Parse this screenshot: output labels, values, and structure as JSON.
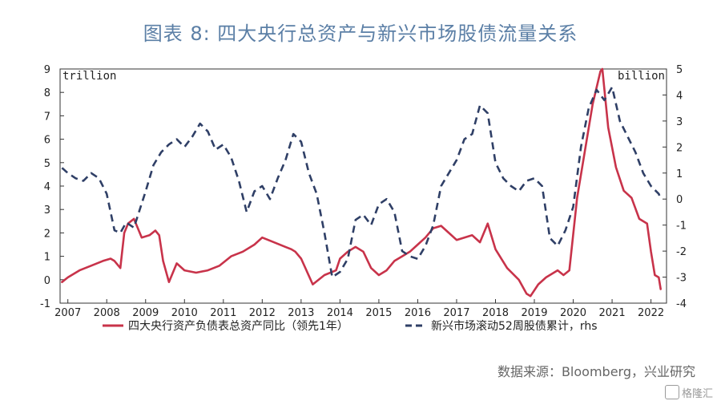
{
  "title": "图表 8:     四大央行总资产与新兴市场股债流量关系",
  "source": "数据来源：Bloomberg，兴业研究",
  "watermark": "格隆汇",
  "chart_data": {
    "type": "line",
    "left_unit": "trillion",
    "right_unit": "billion",
    "x_ticks": [
      "2007",
      "2008",
      "2009",
      "2010",
      "2011",
      "2012",
      "2013",
      "2014",
      "2015",
      "2016",
      "2017",
      "2018",
      "2019",
      "2020",
      "2021",
      "2022"
    ],
    "xlim": [
      2006.8,
      2022.4
    ],
    "ylim_left": [
      -1,
      9
    ],
    "ylim_right": [
      -4,
      5
    ],
    "y_ticks_left": [
      -1,
      0,
      1,
      2,
      3,
      4,
      5,
      6,
      7,
      8,
      9
    ],
    "y_ticks_right": [
      -4,
      -3,
      -2,
      -1,
      0,
      1,
      2,
      3,
      4,
      5
    ],
    "legend_position": "bottom",
    "series": [
      {
        "name": "四大央行资产负债表总资产同比（领先1年）",
        "axis": "left",
        "color": "#c8334a",
        "style": "solid",
        "x": [
          2006.85,
          2007.0,
          2007.3,
          2007.6,
          2007.9,
          2008.1,
          2008.2,
          2008.35,
          2008.45,
          2008.55,
          2008.7,
          2008.9,
          2009.1,
          2009.25,
          2009.35,
          2009.45,
          2009.6,
          2009.8,
          2010.0,
          2010.3,
          2010.6,
          2010.9,
          2011.2,
          2011.5,
          2011.8,
          2012.0,
          2012.3,
          2012.6,
          2012.75,
          2012.85,
          2013.0,
          2013.3,
          2013.6,
          2013.9,
          2014.0,
          2014.2,
          2014.4,
          2014.6,
          2014.8,
          2015.0,
          2015.2,
          2015.4,
          2015.6,
          2015.8,
          2016.0,
          2016.2,
          2016.4,
          2016.6,
          2016.8,
          2017.0,
          2017.2,
          2017.4,
          2017.6,
          2017.8,
          2018.0,
          2018.3,
          2018.6,
          2018.8,
          2018.9,
          2019.1,
          2019.3,
          2019.5,
          2019.6,
          2019.75,
          2019.9,
          2020.1,
          2020.3,
          2020.5,
          2020.7,
          2020.75,
          2020.9,
          2021.1,
          2021.3,
          2021.5,
          2021.7,
          2021.9,
          2022.0,
          2022.1,
          2022.2,
          2022.25
        ],
        "values": [
          -0.1,
          0.1,
          0.4,
          0.6,
          0.8,
          0.9,
          0.8,
          0.5,
          2.0,
          2.4,
          2.6,
          1.8,
          1.9,
          2.1,
          1.9,
          0.8,
          -0.1,
          0.7,
          0.4,
          0.3,
          0.4,
          0.6,
          1.0,
          1.2,
          1.5,
          1.8,
          1.6,
          1.4,
          1.3,
          1.2,
          0.9,
          -0.2,
          0.2,
          0.4,
          0.9,
          1.2,
          1.4,
          1.2,
          0.5,
          0.2,
          0.4,
          0.8,
          1.0,
          1.2,
          1.5,
          1.8,
          2.2,
          2.3,
          2.0,
          1.7,
          1.8,
          1.9,
          1.6,
          2.4,
          1.3,
          0.5,
          0.0,
          -0.6,
          -0.7,
          -0.2,
          0.1,
          0.3,
          0.4,
          0.2,
          0.4,
          3.5,
          5.5,
          7.5,
          8.9,
          9.0,
          6.5,
          4.8,
          3.8,
          3.5,
          2.6,
          2.4,
          1.2,
          0.2,
          0.1,
          -0.4
        ]
      },
      {
        "name": "新兴市场滚动52周股债累计，rhs",
        "axis": "right",
        "color": "#2f3f66",
        "style": "dashed",
        "x": [
          2006.85,
          2007.0,
          2007.2,
          2007.4,
          2007.6,
          2007.8,
          2008.0,
          2008.2,
          2008.35,
          2008.5,
          2008.7,
          2009.0,
          2009.2,
          2009.4,
          2009.6,
          2009.8,
          2010.0,
          2010.2,
          2010.4,
          2010.6,
          2010.8,
          2011.0,
          2011.2,
          2011.4,
          2011.6,
          2011.8,
          2012.0,
          2012.2,
          2012.4,
          2012.6,
          2012.8,
          2013.0,
          2013.2,
          2013.4,
          2013.6,
          2013.8,
          2014.0,
          2014.2,
          2014.4,
          2014.6,
          2014.8,
          2015.0,
          2015.2,
          2015.4,
          2015.6,
          2015.8,
          2016.0,
          2016.2,
          2016.4,
          2016.6,
          2016.8,
          2017.0,
          2017.2,
          2017.4,
          2017.6,
          2017.8,
          2018.0,
          2018.2,
          2018.4,
          2018.6,
          2018.8,
          2019.0,
          2019.2,
          2019.4,
          2019.6,
          2019.8,
          2020.0,
          2020.2,
          2020.4,
          2020.6,
          2020.8,
          2021.0,
          2021.2,
          2021.4,
          2021.6,
          2021.8,
          2022.0,
          2022.2,
          2022.25
        ],
        "values": [
          1.2,
          1.0,
          0.8,
          0.7,
          1.0,
          0.8,
          0.2,
          -1.2,
          -1.3,
          -0.9,
          -1.1,
          0.3,
          1.3,
          1.8,
          2.1,
          2.3,
          2.0,
          2.4,
          2.9,
          2.6,
          1.9,
          2.1,
          1.6,
          0.7,
          -0.5,
          0.3,
          0.5,
          0.0,
          0.8,
          1.5,
          2.5,
          2.2,
          1.0,
          0.2,
          -1.3,
          -3.0,
          -2.8,
          -2.3,
          -0.8,
          -0.6,
          -1.0,
          -0.2,
          0.0,
          -0.5,
          -2.0,
          -2.2,
          -2.3,
          -1.8,
          -1.0,
          0.5,
          1.0,
          1.5,
          2.3,
          2.5,
          3.6,
          3.3,
          1.4,
          0.8,
          0.5,
          0.3,
          0.7,
          0.8,
          0.5,
          -1.5,
          -1.8,
          -1.2,
          -0.3,
          2.0,
          3.5,
          4.2,
          3.8,
          4.3,
          3.0,
          2.4,
          1.8,
          1.0,
          0.5,
          0.2,
          0.0
        ]
      }
    ]
  }
}
